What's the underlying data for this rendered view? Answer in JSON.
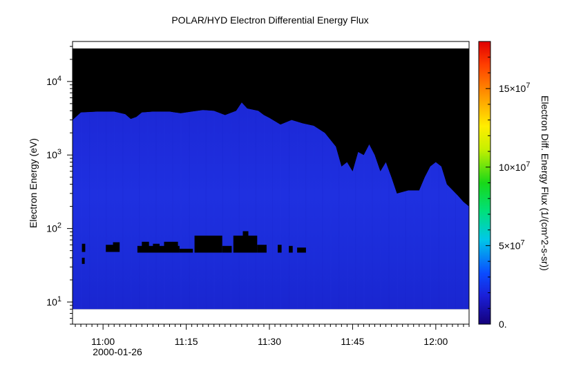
{
  "chart_data": {
    "type": "heatmap",
    "title": "POLAR/HYD  Electron Differential Energy Flux",
    "ylabel": "Electron Energy (eV)",
    "x_tick_labels": [
      "11:00",
      "11:15",
      "11:30",
      "11:45",
      "12:00"
    ],
    "x_tick_minutes": [
      0,
      15,
      30,
      45,
      60
    ],
    "x_date_label": "2000-01-26",
    "xlim_minutes": [
      -5.5,
      66
    ],
    "y_scale": "log",
    "ylim": [
      5,
      35000
    ],
    "y_tick_values": [
      10,
      100,
      1000,
      10000
    ],
    "y_tick_labels": [
      {
        "base": "10",
        "exp": "1"
      },
      {
        "base": "10",
        "exp": "2"
      },
      {
        "base": "10",
        "exp": "3"
      },
      {
        "base": "10",
        "exp": "4"
      }
    ],
    "data_energy_range": [
      8,
      28000
    ],
    "colorbar": {
      "label": "Electron Diff. Energy Flux (1/(cm^2-s-sr))",
      "range": [
        0,
        180000000
      ],
      "colormap": "rainbow (blue-cyan-green-yellow-red)",
      "ticks": [
        {
          "value": 0,
          "label": "0."
        },
        {
          "value": 50000000,
          "label_base": "5×10",
          "label_exp": "7"
        },
        {
          "value": 100000000,
          "label_base": "10×10",
          "label_exp": "7"
        },
        {
          "value": 150000000,
          "label_base": "15×10",
          "label_exp": "7"
        }
      ]
    },
    "upper_boundary": [
      {
        "t": -5.5,
        "e": 3000
      },
      {
        "t": -4,
        "e": 3800
      },
      {
        "t": -1,
        "e": 3900
      },
      {
        "t": 2,
        "e": 3900
      },
      {
        "t": 4,
        "e": 3600
      },
      {
        "t": 5,
        "e": 3100
      },
      {
        "t": 6,
        "e": 3300
      },
      {
        "t": 7,
        "e": 3800
      },
      {
        "t": 9,
        "e": 3900
      },
      {
        "t": 12,
        "e": 3900
      },
      {
        "t": 14,
        "e": 3700
      },
      {
        "t": 16,
        "e": 3900
      },
      {
        "t": 18,
        "e": 4100
      },
      {
        "t": 20,
        "e": 4000
      },
      {
        "t": 22,
        "e": 3500
      },
      {
        "t": 24,
        "e": 4000
      },
      {
        "t": 25,
        "e": 5200
      },
      {
        "t": 26,
        "e": 4300
      },
      {
        "t": 28,
        "e": 4000
      },
      {
        "t": 29,
        "e": 3500
      },
      {
        "t": 30,
        "e": 3200
      },
      {
        "t": 32,
        "e": 2600
      },
      {
        "t": 34,
        "e": 3000
      },
      {
        "t": 36,
        "e": 2700
      },
      {
        "t": 38,
        "e": 2500
      },
      {
        "t": 40,
        "e": 2000
      },
      {
        "t": 42,
        "e": 1300
      },
      {
        "t": 43,
        "e": 700
      },
      {
        "t": 44,
        "e": 800
      },
      {
        "t": 45,
        "e": 600
      },
      {
        "t": 46,
        "e": 1100
      },
      {
        "t": 47,
        "e": 1000
      },
      {
        "t": 48,
        "e": 1400
      },
      {
        "t": 49,
        "e": 1000
      },
      {
        "t": 50,
        "e": 600
      },
      {
        "t": 51,
        "e": 800
      },
      {
        "t": 52,
        "e": 500
      },
      {
        "t": 53,
        "e": 300
      },
      {
        "t": 55,
        "e": 330
      },
      {
        "t": 57,
        "e": 330
      },
      {
        "t": 58,
        "e": 500
      },
      {
        "t": 59,
        "e": 700
      },
      {
        "t": 60,
        "e": 800
      },
      {
        "t": 61,
        "e": 700
      },
      {
        "t": 62,
        "e": 400
      },
      {
        "t": 64,
        "e": 280
      },
      {
        "t": 65,
        "e": 230
      },
      {
        "t": 66,
        "e": 200
      }
    ],
    "low_flux_gaps": [
      {
        "t0": -3.8,
        "t1": -3.2,
        "e0": 48,
        "e1": 62
      },
      {
        "t0": -3.8,
        "t1": -3.3,
        "e0": 33,
        "e1": 40
      },
      {
        "t0": 0.5,
        "t1": 2.2,
        "e0": 48,
        "e1": 60
      },
      {
        "t0": 1.8,
        "t1": 3.0,
        "e0": 48,
        "e1": 65
      },
      {
        "t0": 6.2,
        "t1": 13.8,
        "e0": 47,
        "e1": 58
      },
      {
        "t0": 7.0,
        "t1": 8.3,
        "e0": 52,
        "e1": 66
      },
      {
        "t0": 9.0,
        "t1": 10.2,
        "e0": 52,
        "e1": 62
      },
      {
        "t0": 11.0,
        "t1": 13.5,
        "e0": 52,
        "e1": 66
      },
      {
        "t0": 13.8,
        "t1": 16.2,
        "e0": 47,
        "e1": 53
      },
      {
        "t0": 16.5,
        "t1": 21.5,
        "e0": 47,
        "e1": 80
      },
      {
        "t0": 21.5,
        "t1": 23.2,
        "e0": 47,
        "e1": 58
      },
      {
        "t0": 23.5,
        "t1": 27.8,
        "e0": 47,
        "e1": 80
      },
      {
        "t0": 25.2,
        "t1": 26.2,
        "e0": 75,
        "e1": 92
      },
      {
        "t0": 27.8,
        "t1": 29.5,
        "e0": 47,
        "e1": 60
      },
      {
        "t0": 31.5,
        "t1": 32.2,
        "e0": 47,
        "e1": 60
      },
      {
        "t0": 33.5,
        "t1": 34.2,
        "e0": 47,
        "e1": 58
      },
      {
        "t0": 35.0,
        "t1": 36.6,
        "e0": 47,
        "e1": 55
      }
    ]
  }
}
